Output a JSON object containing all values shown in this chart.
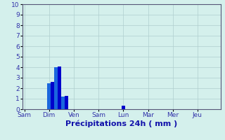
{
  "title": "",
  "xlabel": "Précipitations 24h ( mm )",
  "ylabel": "",
  "ylim": [
    0,
    10
  ],
  "yticks": [
    0,
    1,
    2,
    3,
    4,
    5,
    6,
    7,
    8,
    9,
    10
  ],
  "background_color": "#d4f0ec",
  "bar_color_dark": "#0000cc",
  "bar_color_light": "#1a66dd",
  "grid_color": "#b0cece",
  "x_labels": [
    "Sam",
    "Dim",
    "Ven",
    "Sam",
    "Lun",
    "Mar",
    "Mer",
    "Jeu"
  ],
  "n_bars": 56,
  "bars_data": [
    [
      0,
      0.0
    ],
    [
      1,
      0.0
    ],
    [
      2,
      0.0
    ],
    [
      3,
      0.0
    ],
    [
      4,
      0.0
    ],
    [
      5,
      0.0
    ],
    [
      6,
      0.0
    ],
    [
      7,
      2.5
    ],
    [
      8,
      2.6
    ],
    [
      9,
      4.0
    ],
    [
      10,
      4.05
    ],
    [
      11,
      1.2
    ],
    [
      12,
      1.3
    ],
    [
      13,
      0.0
    ],
    [
      14,
      0.0
    ],
    [
      15,
      0.0
    ],
    [
      16,
      0.0
    ],
    [
      17,
      0.0
    ],
    [
      18,
      0.0
    ],
    [
      19,
      0.0
    ],
    [
      20,
      0.0
    ],
    [
      21,
      0.0
    ],
    [
      22,
      0.0
    ],
    [
      23,
      0.0
    ],
    [
      24,
      0.0
    ],
    [
      25,
      0.0
    ],
    [
      26,
      0.0
    ],
    [
      27,
      0.0
    ],
    [
      28,
      0.35
    ],
    [
      29,
      0.0
    ],
    [
      30,
      0.0
    ],
    [
      31,
      0.0
    ],
    [
      32,
      0.0
    ],
    [
      33,
      0.0
    ],
    [
      34,
      0.0
    ],
    [
      35,
      0.0
    ],
    [
      36,
      0.0
    ],
    [
      37,
      0.0
    ],
    [
      38,
      0.0
    ],
    [
      39,
      0.0
    ],
    [
      40,
      0.0
    ],
    [
      41,
      0.0
    ],
    [
      42,
      0.0
    ],
    [
      43,
      0.0
    ],
    [
      44,
      0.0
    ],
    [
      45,
      0.0
    ],
    [
      46,
      0.0
    ],
    [
      47,
      0.0
    ],
    [
      48,
      0.0
    ],
    [
      49,
      0.0
    ],
    [
      50,
      0.0
    ],
    [
      51,
      0.0
    ],
    [
      52,
      0.0
    ],
    [
      53,
      0.0
    ],
    [
      54,
      0.0
    ],
    [
      55,
      0.0
    ]
  ],
  "tick_positions": [
    0,
    7,
    14,
    21,
    28,
    35,
    42,
    49
  ],
  "tick_label_color": "#3333aa",
  "xlabel_color": "#1111aa",
  "xlabel_fontsize": 8,
  "tick_fontsize": 6.5
}
